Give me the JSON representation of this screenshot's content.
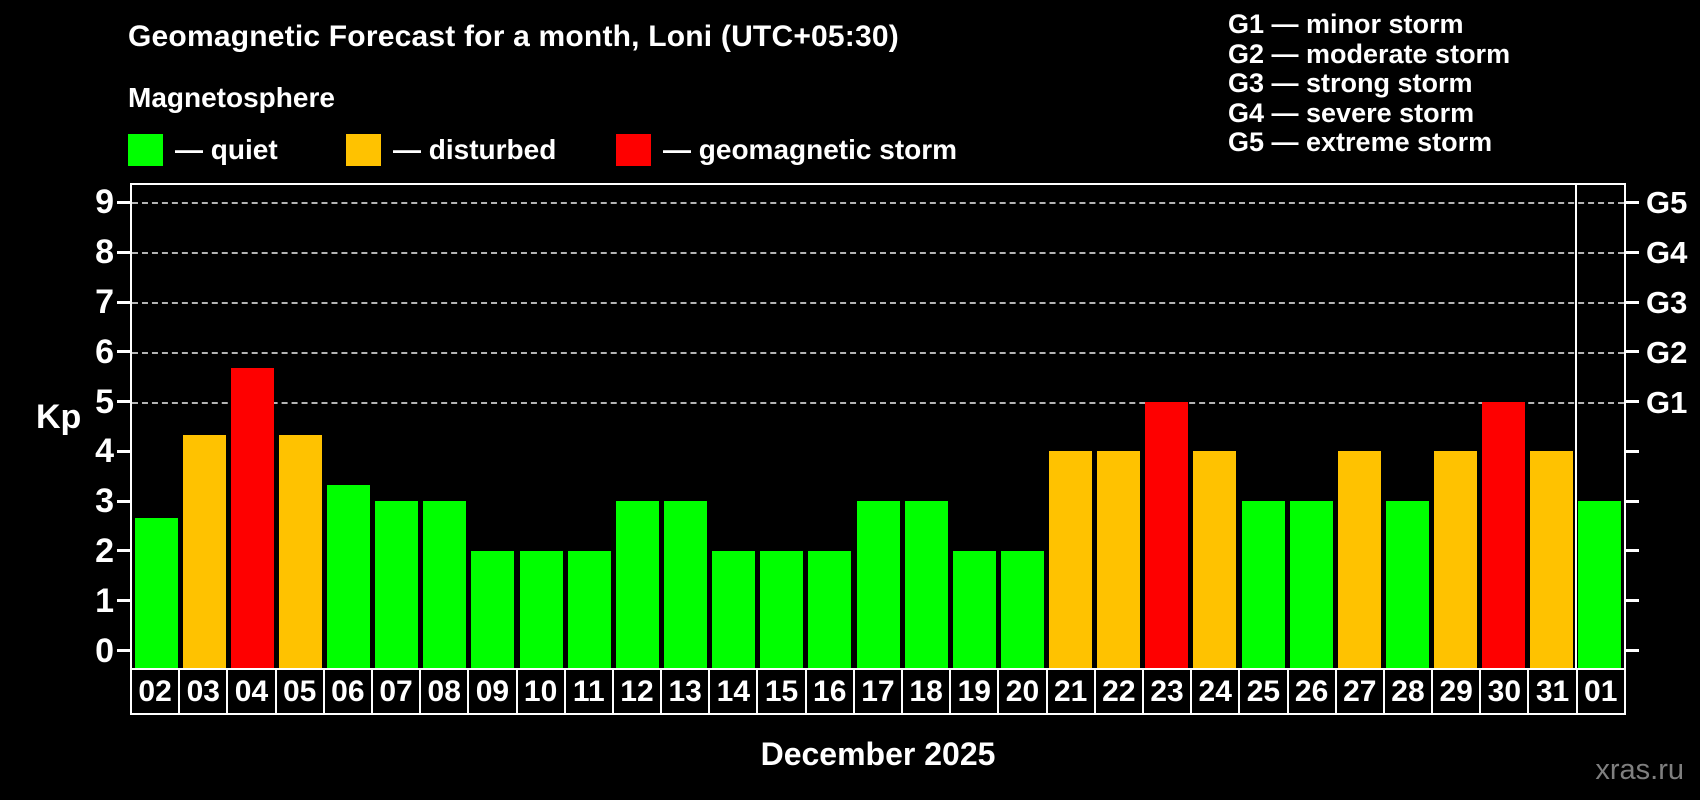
{
  "title": "Geomagnetic Forecast for a month, Loni (UTC+05:30)",
  "subtitle": "Magnetosphere",
  "legend": {
    "items": [
      {
        "key": "quiet",
        "label": "— quiet"
      },
      {
        "key": "disturbed",
        "label": "— disturbed"
      },
      {
        "key": "storm",
        "label": "— geomagnetic storm"
      }
    ]
  },
  "g_scale_legend": {
    "rows": [
      {
        "label": "G1 — minor storm"
      },
      {
        "label": "G2 — moderate storm"
      },
      {
        "label": "G3 — strong storm"
      },
      {
        "label": "G4 — severe storm"
      },
      {
        "label": "G5 — extreme storm"
      }
    ]
  },
  "colors": {
    "quiet": "#00ff00",
    "disturbed": "#ffc200",
    "storm": "#fe0000",
    "gridline": "#b4b4b4",
    "axis": "#ffffff",
    "background": "#000000",
    "watermark_text": "#7f7f7f"
  },
  "chart_data": {
    "type": "bar",
    "title": "Geomagnetic Forecast for a month, Loni (UTC+05:30)",
    "xlabel": "December 2025",
    "ylabel": "Kp",
    "ylim": [
      0,
      9
    ],
    "yticks": [
      0,
      1,
      2,
      3,
      4,
      5,
      6,
      7,
      8,
      9
    ],
    "grid": "horizontal dashed lines at Kp 5,6,7,8,9 only",
    "legend_position": "top-left above plot",
    "categories": [
      "02",
      "03",
      "04",
      "05",
      "06",
      "07",
      "08",
      "09",
      "10",
      "11",
      "12",
      "13",
      "14",
      "15",
      "16",
      "17",
      "18",
      "19",
      "20",
      "21",
      "22",
      "23",
      "24",
      "25",
      "26",
      "27",
      "28",
      "29",
      "30",
      "31",
      "01"
    ],
    "values": [
      2.67,
      4.33,
      5.67,
      4.33,
      3.33,
      3,
      3,
      2,
      2,
      2,
      3,
      3,
      2,
      2,
      2,
      3,
      3,
      2,
      2,
      4,
      4,
      5,
      4,
      3,
      3,
      4,
      3,
      4,
      5,
      4,
      3
    ],
    "statuses": [
      "quiet",
      "disturbed",
      "storm",
      "disturbed",
      "quiet",
      "quiet",
      "quiet",
      "quiet",
      "quiet",
      "quiet",
      "quiet",
      "quiet",
      "quiet",
      "quiet",
      "quiet",
      "quiet",
      "quiet",
      "quiet",
      "quiet",
      "disturbed",
      "disturbed",
      "storm",
      "disturbed",
      "quiet",
      "quiet",
      "disturbed",
      "quiet",
      "disturbed",
      "storm",
      "disturbed",
      "quiet"
    ],
    "right_axis": {
      "labels": [
        "G1",
        "G2",
        "G3",
        "G4",
        "G5"
      ],
      "at_values": [
        5,
        6,
        7,
        8,
        9
      ]
    },
    "month_separator_after_index": 29
  },
  "footer": {
    "watermark": "xras.ru"
  }
}
